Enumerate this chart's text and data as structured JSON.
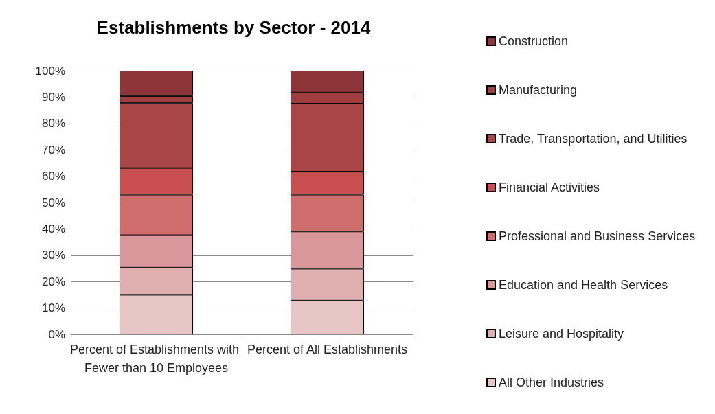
{
  "chart_data": {
    "type": "bar",
    "title": "Establishments by Sector - 2014",
    "categories": [
      "Percent of Establishments with Fewer than 10 Employees",
      "Percent of All Establishments"
    ],
    "stacked": true,
    "series": [
      {
        "name": "All Other Industries",
        "color": "#e8c6c6",
        "values": [
          15,
          12.8
        ]
      },
      {
        "name": "Leisure and Hospitality",
        "color": "#e0afb0",
        "values": [
          10.3,
          12.1
        ]
      },
      {
        "name": "Education and Health Services",
        "color": "#d9979b",
        "values": [
          12.3,
          14.1
        ]
      },
      {
        "name": "Professional and Business Services",
        "color": "#cf6d6d",
        "values": [
          15.4,
          14.0
        ]
      },
      {
        "name": "Financial Activities",
        "color": "#c94f51",
        "values": [
          10.1,
          8.7
        ]
      },
      {
        "name": "Trade, Transportation, and Utilities",
        "color": "#aa4547",
        "values": [
          24.6,
          25.8
        ]
      },
      {
        "name": "Manufacturing",
        "color": "#a03d40",
        "values": [
          2.7,
          4.2
        ]
      },
      {
        "name": "Construction",
        "color": "#8d3538",
        "values": [
          9.6,
          8.3
        ]
      }
    ],
    "ylim": [
      0,
      100
    ],
    "yticks": [
      {
        "value": 0,
        "label": "0%"
      },
      {
        "value": 10,
        "label": "10%"
      },
      {
        "value": 20,
        "label": "20%"
      },
      {
        "value": 30,
        "label": "30%"
      },
      {
        "value": 40,
        "label": "40%"
      },
      {
        "value": 50,
        "label": "50%"
      },
      {
        "value": 60,
        "label": "60%"
      },
      {
        "value": 70,
        "label": "70%"
      },
      {
        "value": 80,
        "label": "80%"
      },
      {
        "value": 90,
        "label": "90%"
      },
      {
        "value": 100,
        "label": "100%"
      }
    ],
    "grid": "y",
    "legend": "right"
  }
}
